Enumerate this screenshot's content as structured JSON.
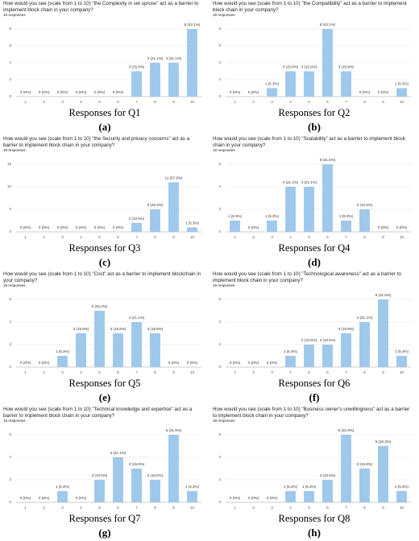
{
  "chart_data": [
    {
      "type": "bar",
      "title": "How would you see (scale from 1 to 10) \"the Complexity in set up/use\" act as a barrier to implement block chain in your company?",
      "subtitle": "19 responses",
      "categories": [
        "1",
        "2",
        "3",
        "4",
        "5",
        "6",
        "7",
        "8",
        "9",
        "10"
      ],
      "values": [
        0,
        0,
        0,
        0,
        0,
        0,
        3,
        4,
        4,
        8
      ],
      "value_labels": [
        "0 (0%)",
        "0 (0%)",
        "0 (0%)",
        "0 (0%)",
        "0 (0%)",
        "0 (0%)",
        "3 (15.8%)",
        "4 (21.1%)",
        "4 (21.1%)",
        "8 (42.1%)"
      ],
      "ylim": [
        0,
        8
      ],
      "yticks": [
        0,
        2,
        4,
        6,
        8
      ],
      "color": "#9fc8eb",
      "grid": true,
      "caption": "Responses for Q1",
      "label": "(a)"
    },
    {
      "type": "bar",
      "title": "How would you see (scale from 1 to 10) \"the Compatibility\" act as a barrier to implement block chain in your company?",
      "subtitle": "19 responses",
      "categories": [
        "1",
        "2",
        "3",
        "4",
        "5",
        "6",
        "7",
        "8",
        "9",
        "10"
      ],
      "values": [
        0,
        0,
        1,
        3,
        3,
        8,
        3,
        0,
        0,
        1
      ],
      "value_labels": [
        "0 (0%)",
        "0 (0%)",
        "1 (5.3%)",
        "3 (15.8%)",
        "3 (15.8%)",
        "8 (42.1%)",
        "3 (15.8%)",
        "0 (0%)",
        "0 (0%)",
        "1 (5.3%)"
      ],
      "ylim": [
        0,
        8
      ],
      "yticks": [
        0,
        2,
        4,
        6,
        8
      ],
      "color": "#9fc8eb",
      "grid": true,
      "caption": "Responses for Q2",
      "label": "(b)"
    },
    {
      "type": "bar",
      "title": "How would you see (scale from 1 to 10) \"the Security and privacy concerns\" act as a barrier to implement block chain in your company?",
      "subtitle": "19 responses",
      "categories": [
        "1",
        "2",
        "3",
        "4",
        "5",
        "6",
        "7",
        "8",
        "9",
        "10"
      ],
      "values": [
        0,
        0,
        0,
        0,
        0,
        0,
        2,
        5,
        11,
        1
      ],
      "value_labels": [
        "0 (0%)",
        "0 (0%)",
        "0 (0%)",
        "0 (0%)",
        "0 (0%)",
        "0 (0%)",
        "2 (10.5%)",
        "5 (26.3%)",
        "11 (57.9%)",
        "1 (5.3%)"
      ],
      "ylim": [
        0,
        15
      ],
      "yticks": [
        0,
        5,
        10,
        15
      ],
      "color": "#9fc8eb",
      "grid": true,
      "caption": "Responses for Q3",
      "label": "(c)"
    },
    {
      "type": "bar",
      "title": "How would you see (scale from 1 to 10) \"Scalability\" act as a barrier to implement block chain in your company?",
      "subtitle": "19 responses",
      "categories": [
        "1",
        "2",
        "3",
        "4",
        "5",
        "6",
        "7",
        "8",
        "9",
        "10"
      ],
      "values": [
        1,
        0,
        1,
        4,
        4,
        6,
        1,
        2,
        0,
        0
      ],
      "value_labels": [
        "1 (5.3%)",
        "0 (0%)",
        "1 (5.3%)",
        "4 (21.1%)",
        "4 (21.1%)",
        "6 (31.6%)",
        "1 (5.3%)",
        "2 (10.5%)",
        "0 (0%)",
        "0 (0%)"
      ],
      "ylim": [
        0,
        6
      ],
      "yticks": [
        0,
        2,
        4,
        6
      ],
      "color": "#9fc8eb",
      "grid": true,
      "caption": "Responses for Q4",
      "label": "(d)"
    },
    {
      "type": "bar",
      "title": "How would you see (scale from 1 to 10) \"Cost\" act as a barrier to implement blockchain in your company?",
      "subtitle": "19 responses",
      "categories": [
        "1",
        "2",
        "3",
        "4",
        "5",
        "6",
        "7",
        "8",
        "9",
        "10"
      ],
      "values": [
        0,
        0,
        1,
        3,
        5,
        3,
        4,
        3,
        0,
        0
      ],
      "value_labels": [
        "0 (0%)",
        "0 (0%)",
        "1 (5.3%)",
        "3 (15.8%)",
        "5 (26.3%)",
        "3 (15.8%)",
        "4 (21.1%)",
        "3 (15.8%)",
        "0 (0%)",
        "0 (0%)"
      ],
      "ylim": [
        0,
        6
      ],
      "yticks": [
        0,
        2,
        4,
        6
      ],
      "color": "#9fc8eb",
      "grid": true,
      "caption": "Responses for Q5",
      "label": "(e)"
    },
    {
      "type": "bar",
      "title": "How would you see (scale from 1 to 10) \"Technological awareness\" act as a barrier to implement block chain in your company?",
      "subtitle": "19 responses",
      "categories": [
        "1",
        "2",
        "3",
        "4",
        "5",
        "6",
        "7",
        "8",
        "9",
        "10"
      ],
      "values": [
        0,
        0,
        0,
        1,
        2,
        2,
        3,
        4,
        6,
        1
      ],
      "value_labels": [
        "0 (0%)",
        "0 (0%)",
        "0 (0%)",
        "1 (5.3%)",
        "2 (10.5%)",
        "2 (10.5%)",
        "3 (15.8%)",
        "4 (21.1%)",
        "6 (31.6%)",
        "1 (5.3%)"
      ],
      "ylim": [
        0,
        6
      ],
      "yticks": [
        0,
        2,
        4,
        6
      ],
      "color": "#9fc8eb",
      "grid": true,
      "caption": "Responses for Q6",
      "label": "(f)"
    },
    {
      "type": "bar",
      "title": "How would you see (scale from 1 to 10) \"Technical knowledge and expertise\" act as a barrier to implement block chain in your company?",
      "subtitle": "19 responses",
      "categories": [
        "1",
        "2",
        "3",
        "4",
        "5",
        "6",
        "7",
        "8",
        "9",
        "10"
      ],
      "values": [
        0,
        0,
        1,
        0,
        2,
        4,
        3,
        2,
        6,
        1
      ],
      "value_labels": [
        "0 (0%)",
        "0 (0%)",
        "1 (5.3%)",
        "0 (0%)",
        "2 (10.5%)",
        "4 (21.1%)",
        "3 (15.8%)",
        "2 (10.5%)",
        "6 (31.6%)",
        "1 (5.3%)"
      ],
      "ylim": [
        0,
        6
      ],
      "yticks": [
        0,
        2,
        4,
        6
      ],
      "color": "#9fc8eb",
      "grid": true,
      "caption": "Responses for Q7",
      "label": "(g)"
    },
    {
      "type": "bar",
      "title": "How would you see (scale from 1 to 10) \"Business owner's unwillingness\" act as a barrier to implement block chain in your company?",
      "subtitle": "19 responses",
      "categories": [
        "1",
        "2",
        "3",
        "4",
        "5",
        "6",
        "7",
        "8",
        "9",
        "10"
      ],
      "values": [
        0,
        0,
        0,
        1,
        1,
        2,
        6,
        3,
        5,
        1
      ],
      "value_labels": [
        "0 (0%)",
        "0 (0%)",
        "0 (0%)",
        "1 (5.3%)",
        "1 (5.3%)",
        "2 (10.5%)",
        "6 (31.6%)",
        "3 (15.8%)",
        "5 (26.3%)",
        "1 (5.3%)"
      ],
      "ylim": [
        0,
        6
      ],
      "yticks": [
        0,
        2,
        4,
        6
      ],
      "color": "#9fc8eb",
      "grid": true,
      "caption": "Responses for Q8",
      "label": "(h)"
    }
  ]
}
